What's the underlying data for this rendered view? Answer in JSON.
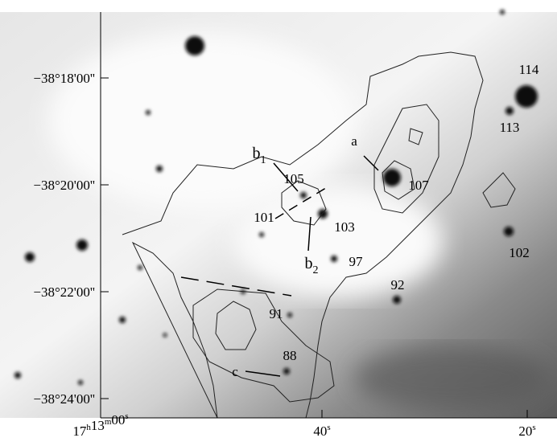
{
  "axes": {
    "dec_ticks": [
      "−38°18'00''",
      "−38°20'00''",
      "−38°22'00''",
      "−38°24'00''"
    ],
    "ra_ticks": [
      "17h13m00s",
      "40s",
      "20s"
    ]
  },
  "sources": [
    "114",
    "113",
    "a",
    "107",
    "b1",
    "105",
    "101",
    "103",
    "b2",
    "97",
    "92",
    "102",
    "91",
    "88",
    "c"
  ]
}
